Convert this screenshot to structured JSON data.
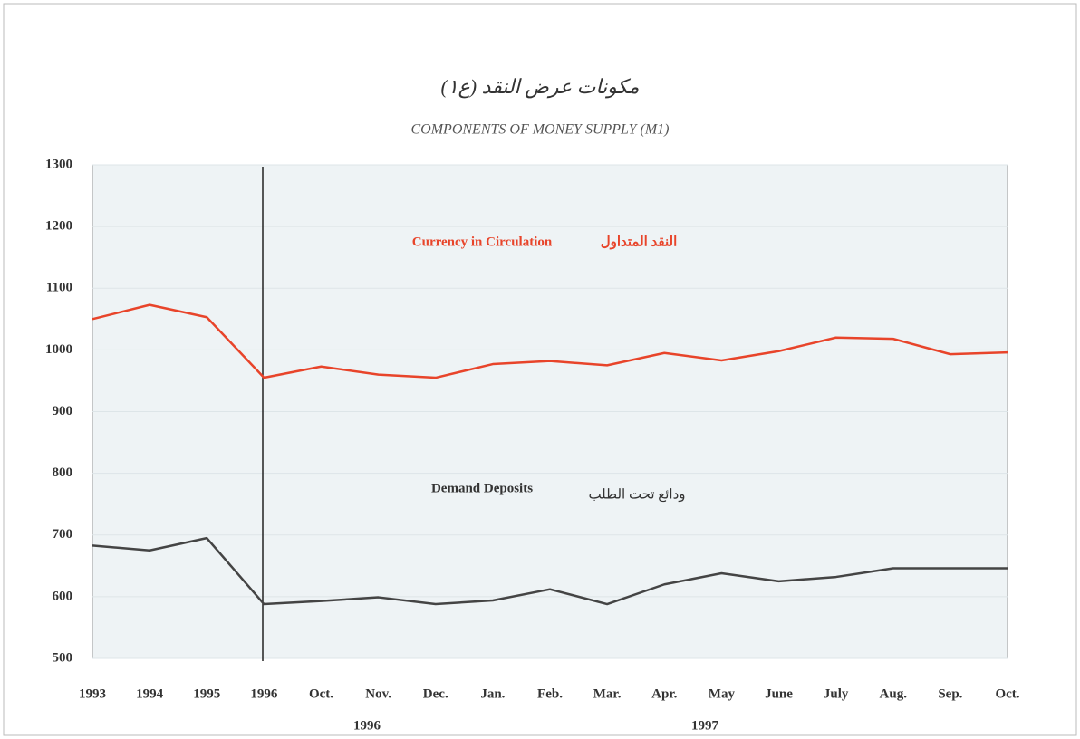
{
  "chart_data": {
    "type": "line",
    "title": "مكونات عرض النقد (ع١)",
    "subtitle": "COMPONENTS OF MONEY SUPPLY (M1)",
    "categories": [
      "1993",
      "1994",
      "1995",
      "1996",
      "Oct.",
      "Nov.",
      "Dec.",
      "Jan.",
      "Feb.",
      "Mar.",
      "Apr.",
      "May",
      "June",
      "July",
      "Aug.",
      "Sep.",
      "Oct."
    ],
    "groups": [
      "1996",
      "1997"
    ],
    "series": [
      {
        "name": "Currency in Circulation",
        "name_ar": "النقد المتداول",
        "color": "#e8442a",
        "values": [
          1050,
          1073,
          1053,
          955,
          973,
          960,
          955,
          977,
          982,
          975,
          995,
          983,
          998,
          1020,
          1018,
          993,
          996
        ]
      },
      {
        "name": "Demand Deposits",
        "name_ar": "ودائع تحت الطلب",
        "color": "#444444",
        "values": [
          683,
          675,
          695,
          588,
          593,
          599,
          588,
          594,
          612,
          588,
          620,
          638,
          625,
          632,
          646,
          646,
          646
        ]
      }
    ],
    "ylim": [
      500,
      1300
    ],
    "yticks": [
      500,
      600,
      700,
      800,
      900,
      1000,
      1100,
      1200,
      1300
    ],
    "grid": true
  }
}
